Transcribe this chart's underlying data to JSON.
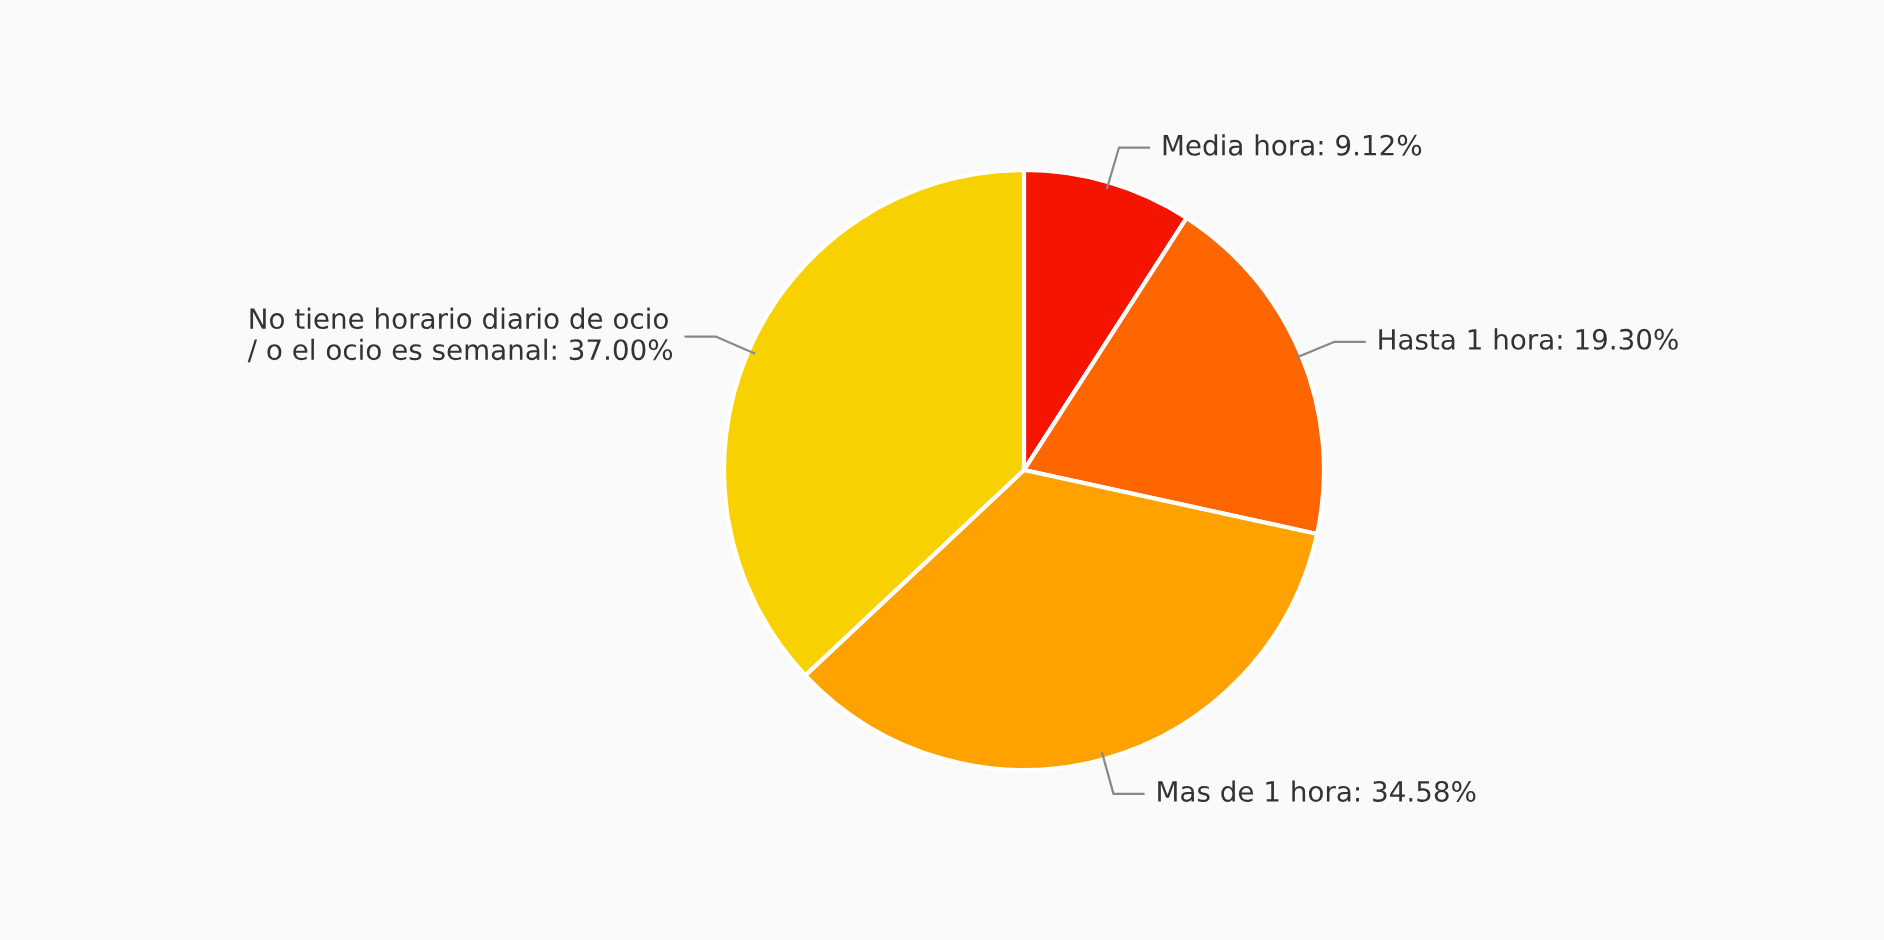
{
  "chart_data": {
    "type": "pie",
    "categories": [
      "Media hora",
      "Hasta 1 hora",
      "Mas de 1 hora",
      "No tiene horario diario de ocio\n/ o el ocio es semanal"
    ],
    "values": [
      9.12,
      19.3,
      34.58,
      37.0
    ],
    "colors": [
      "#f41400",
      "#ff6600",
      "#ffa200",
      "#f8d200"
    ],
    "value_labels": [
      "9.12%",
      "19.30%",
      "34.58%",
      "37.00%"
    ]
  }
}
